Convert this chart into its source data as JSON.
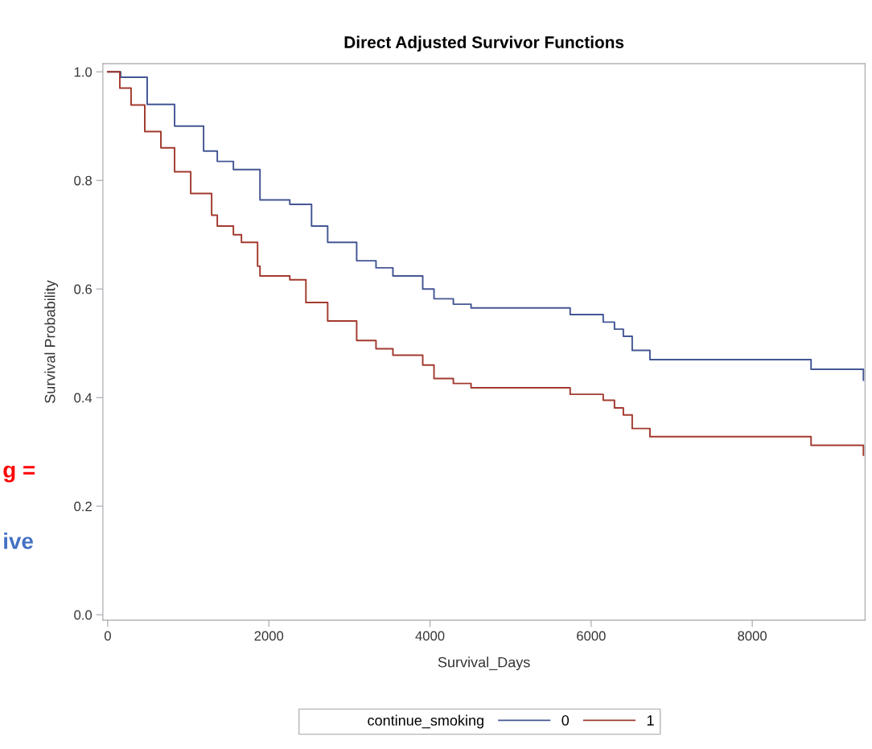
{
  "chart_data": {
    "type": "step",
    "title": "Direct Adjusted Survivor Functions",
    "xlabel": "Survival_Days",
    "ylabel": "Survival Probability",
    "legend_title": "continue_smoking",
    "legend": "bottom",
    "grid": false,
    "marker": "none",
    "line_style": "solid",
    "xlim": [
      -60,
      9400
    ],
    "xticks": [
      0,
      2000,
      4000,
      6000,
      8000
    ],
    "ylim": [
      -0.01,
      1.015
    ],
    "yticks": [
      {
        "value": 0,
        "label": "0.0"
      },
      0.2,
      0.4,
      0.6,
      0.8,
      {
        "value": 1,
        "label": "1.0"
      }
    ],
    "annotations": [
      "g =",
      "ive"
    ],
    "series": [
      {
        "name": "0",
        "color": "#445694",
        "x": [
          0,
          160,
          490,
          830,
          1190,
          1360,
          1560,
          1890,
          2260,
          2530,
          2730,
          3090,
          3330,
          3540,
          3910,
          4050,
          4290,
          4510,
          5740,
          6150,
          6290,
          6400,
          6510,
          6730,
          8730,
          9380
        ],
        "values": [
          1.0,
          0.99,
          0.94,
          0.9,
          0.854,
          0.835,
          0.82,
          0.764,
          0.756,
          0.716,
          0.686,
          0.652,
          0.639,
          0.624,
          0.6,
          0.582,
          0.572,
          0.565,
          0.553,
          0.539,
          0.526,
          0.513,
          0.487,
          0.47,
          0.452,
          0.432
        ]
      },
      {
        "name": "1",
        "color": "#a23a2e",
        "x": [
          0,
          150,
          290,
          460,
          660,
          830,
          1030,
          1290,
          1360,
          1560,
          1660,
          1860,
          1890,
          2260,
          2460,
          2730,
          3090,
          3330,
          3540,
          3910,
          4050,
          4290,
          4510,
          5740,
          6150,
          6290,
          6400,
          6510,
          6730,
          8730,
          9380
        ],
        "values": [
          1.0,
          0.97,
          0.939,
          0.89,
          0.86,
          0.816,
          0.776,
          0.736,
          0.716,
          0.7,
          0.686,
          0.642,
          0.624,
          0.617,
          0.575,
          0.541,
          0.505,
          0.49,
          0.478,
          0.46,
          0.435,
          0.426,
          0.418,
          0.406,
          0.395,
          0.381,
          0.368,
          0.343,
          0.328,
          0.312,
          0.294
        ]
      }
    ]
  }
}
